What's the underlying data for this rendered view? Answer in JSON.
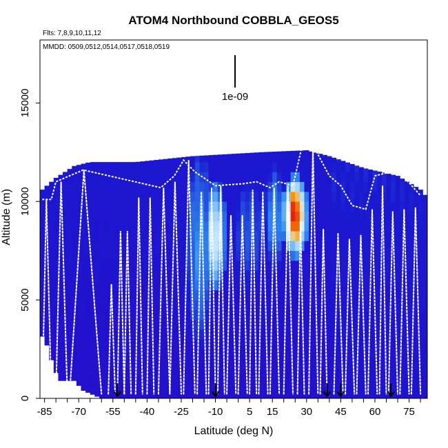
{
  "chart_data": {
    "type": "heatmap",
    "title": "ATOM4 Northbound COBBLA_GEOS5",
    "flights_label": "Flts: 7,8,9,10,11,12",
    "dates_label": "MMDD: 0509,0512,0514,0517,0518,0519",
    "scale_label": "1e-09",
    "xlabel": "Latitude (deg N)",
    "ylabel": "Altitude (m)",
    "xlim": [
      -87,
      83
    ],
    "ylim": [
      0,
      18200
    ],
    "x_tick_labels": [
      "-85",
      "-70",
      "-55",
      "-40",
      "-25",
      "-10",
      "5",
      "15",
      "30",
      "45",
      "60",
      "75"
    ],
    "x_tick_values": [
      -85,
      -70,
      -55,
      -40,
      -25,
      -10,
      5,
      15,
      30,
      45,
      60,
      75
    ],
    "y_tick_labels": [
      "0",
      "5000",
      "10000",
      "15000"
    ],
    "y_tick_values": [
      0,
      5000,
      10000,
      15000
    ],
    "grid": false,
    "colors": {
      "background_field": "#1a1ad0",
      "low": "#2b08c8",
      "mid": "#2f8cf0",
      "high_light": "#d8f4ff",
      "peak_orange": "#ff9a00",
      "peak_red": "#e01010",
      "flight_track": "#ffffff",
      "arrows": "#000000"
    },
    "coverage_top_profile": [
      [
        -87,
        10500
      ],
      [
        -83,
        10900
      ],
      [
        -80,
        11200
      ],
      [
        -76,
        11500
      ],
      [
        -72,
        11800
      ],
      [
        -65,
        12000
      ],
      [
        -45,
        12000
      ],
      [
        -20,
        12300
      ],
      [
        10,
        12500
      ],
      [
        30,
        12600
      ],
      [
        40,
        12300
      ],
      [
        55,
        11700
      ],
      [
        70,
        11300
      ],
      [
        80,
        10600
      ],
      [
        83,
        10200
      ]
    ],
    "coverage_bottom_profile": [
      [
        -87,
        3300
      ],
      [
        -85,
        3000
      ],
      [
        -83,
        2400
      ],
      [
        -81,
        1500
      ],
      [
        -78,
        900
      ],
      [
        -72,
        900
      ],
      [
        -68,
        400
      ],
      [
        -60,
        0
      ],
      [
        83,
        0
      ]
    ],
    "hotspots": [
      {
        "lat_range": [
          -22,
          -12
        ],
        "alt_range": [
          3500,
          12000
        ],
        "level": 0.55
      },
      {
        "lat_range": [
          -14,
          -6
        ],
        "alt_range": [
          6000,
          10500
        ],
        "level": 0.75
      },
      {
        "lat_range": [
          -2,
          12
        ],
        "alt_range": [
          6000,
          11200
        ],
        "level": 0.45
      },
      {
        "lat_range": [
          12,
          20
        ],
        "alt_range": [
          7000,
          11500
        ],
        "level": 0.55
      },
      {
        "lat_range": [
          20,
          30
        ],
        "alt_range": [
          7500,
          11000
        ],
        "level": 0.85
      },
      {
        "lat_range": [
          22,
          28
        ],
        "alt_range": [
          7800,
          10800
        ],
        "level": 1.0
      }
    ],
    "profiles": [
      {
        "lat_start": -86,
        "lat_end": -82,
        "top": 10100
      },
      {
        "lat_start": -80,
        "lat_end": -75,
        "top": 11000
      },
      {
        "lat_start": -74,
        "lat_end": -60,
        "top": 11600
      },
      {
        "lat_start": -57,
        "lat_end": -54,
        "top": 5800
      },
      {
        "lat_start": -53,
        "lat_end": -50,
        "top": 8500
      },
      {
        "lat_start": -50,
        "lat_end": -47,
        "top": 8500
      },
      {
        "lat_start": -45,
        "lat_end": -42,
        "top": 10200
      },
      {
        "lat_start": -40,
        "lat_end": -37,
        "top": 10200
      },
      {
        "lat_start": -35,
        "lat_end": -30,
        "top": 10700
      },
      {
        "lat_start": -30,
        "lat_end": -25,
        "top": 11000
      },
      {
        "lat_start": -24,
        "lat_end": -19,
        "top": 12100
      },
      {
        "lat_start": -18,
        "lat_end": -14,
        "top": 10500
      },
      {
        "lat_start": -13,
        "lat_end": -10,
        "top": 10700
      },
      {
        "lat_start": -9,
        "lat_end": -6,
        "top": 10800
      },
      {
        "lat_start": -5,
        "lat_end": -1,
        "top": 9300
      },
      {
        "lat_start": 0,
        "lat_end": 4,
        "top": 9300
      },
      {
        "lat_start": 5,
        "lat_end": 8,
        "top": 10600
      },
      {
        "lat_start": 9,
        "lat_end": 13,
        "top": 10500
      },
      {
        "lat_start": 14,
        "lat_end": 18,
        "top": 10700
      },
      {
        "lat_start": 20,
        "lat_end": 24,
        "top": 10800
      },
      {
        "lat_start": 26,
        "lat_end": 29,
        "top": 9000
      },
      {
        "lat_start": 31,
        "lat_end": 35,
        "top": 12800
      },
      {
        "lat_start": 36,
        "lat_end": 39,
        "top": 8600
      },
      {
        "lat_start": 42,
        "lat_end": 46,
        "top": 8400
      },
      {
        "lat_start": 47,
        "lat_end": 51,
        "top": 8100
      },
      {
        "lat_start": 52,
        "lat_end": 56,
        "top": 8300
      },
      {
        "lat_start": 57,
        "lat_end": 61,
        "top": 9600
      },
      {
        "lat_start": 62,
        "lat_end": 65,
        "top": 10800
      },
      {
        "lat_start": 66,
        "lat_end": 70,
        "top": 9500
      },
      {
        "lat_start": 71,
        "lat_end": 75,
        "top": 9600
      },
      {
        "lat_start": 76,
        "lat_end": 80,
        "top": 9700
      }
    ],
    "upper_track": [
      [
        -86,
        10100
      ],
      [
        -82,
        10100
      ],
      [
        -80,
        11000
      ],
      [
        -74,
        11300
      ],
      [
        -68,
        11600
      ],
      [
        -34,
        10700
      ],
      [
        -28,
        11300
      ],
      [
        -24,
        12100
      ],
      [
        -19,
        11500
      ],
      [
        -10,
        10800
      ],
      [
        2,
        10900
      ],
      [
        8,
        11000
      ],
      [
        14,
        10700
      ],
      [
        18,
        11000
      ],
      [
        24,
        10800
      ],
      [
        28,
        12800
      ],
      [
        34,
        12600
      ],
      [
        40,
        11300
      ],
      [
        45,
        10800
      ],
      [
        50,
        9800
      ],
      [
        56,
        9600
      ],
      [
        60,
        11300
      ],
      [
        70,
        11600
      ],
      [
        80,
        10300
      ]
    ],
    "arrows_lat": [
      -53,
      -10,
      39,
      45,
      67
    ]
  }
}
